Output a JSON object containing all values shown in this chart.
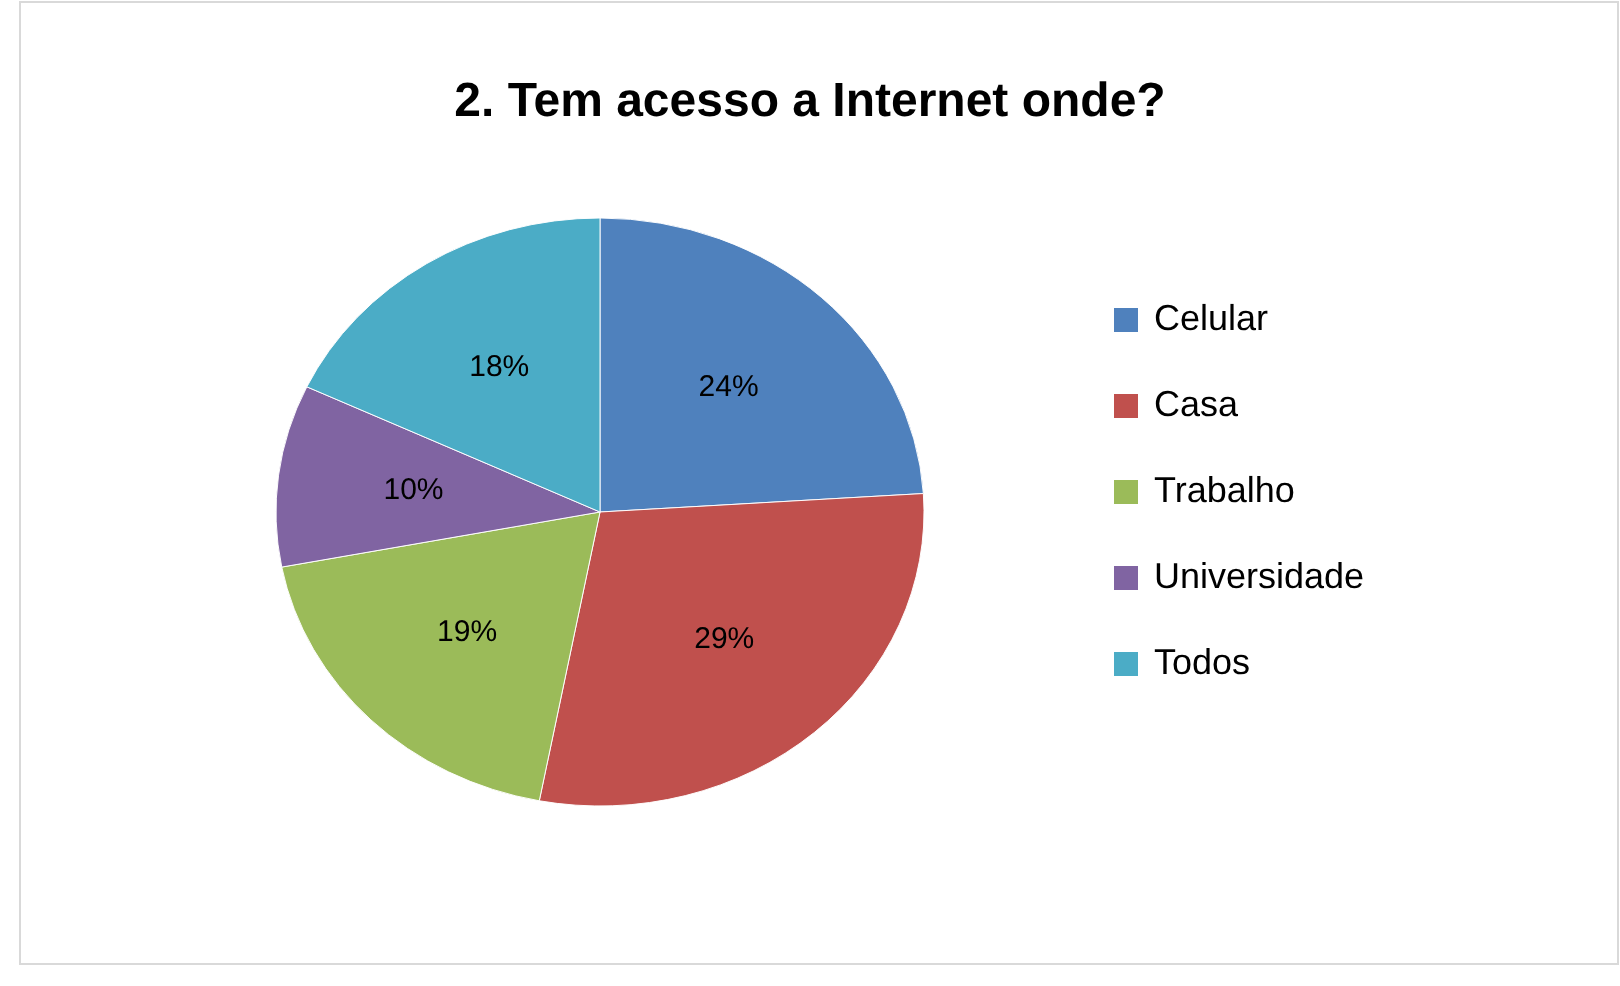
{
  "chart_data": {
    "type": "pie",
    "title": "2. Tem acesso a Internet onde?",
    "categories": [
      "Celular",
      "Casa",
      "Trabalho",
      "Universidade",
      "Todos"
    ],
    "values": [
      24,
      29,
      19,
      10,
      18
    ],
    "colors": [
      "#4f81bd",
      "#c0504d",
      "#9bbb59",
      "#8064a2",
      "#4bacc6"
    ],
    "value_labels": [
      "24%",
      "29%",
      "19%",
      "10%",
      "18%"
    ],
    "legend": "right"
  }
}
